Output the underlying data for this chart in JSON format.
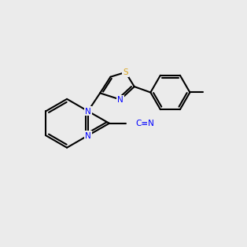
{
  "background_color": "#EBEBEB",
  "bond_color": "#000000",
  "N_color": "#0000FF",
  "S_color": "#DAA520",
  "C_color": "#000000"
}
